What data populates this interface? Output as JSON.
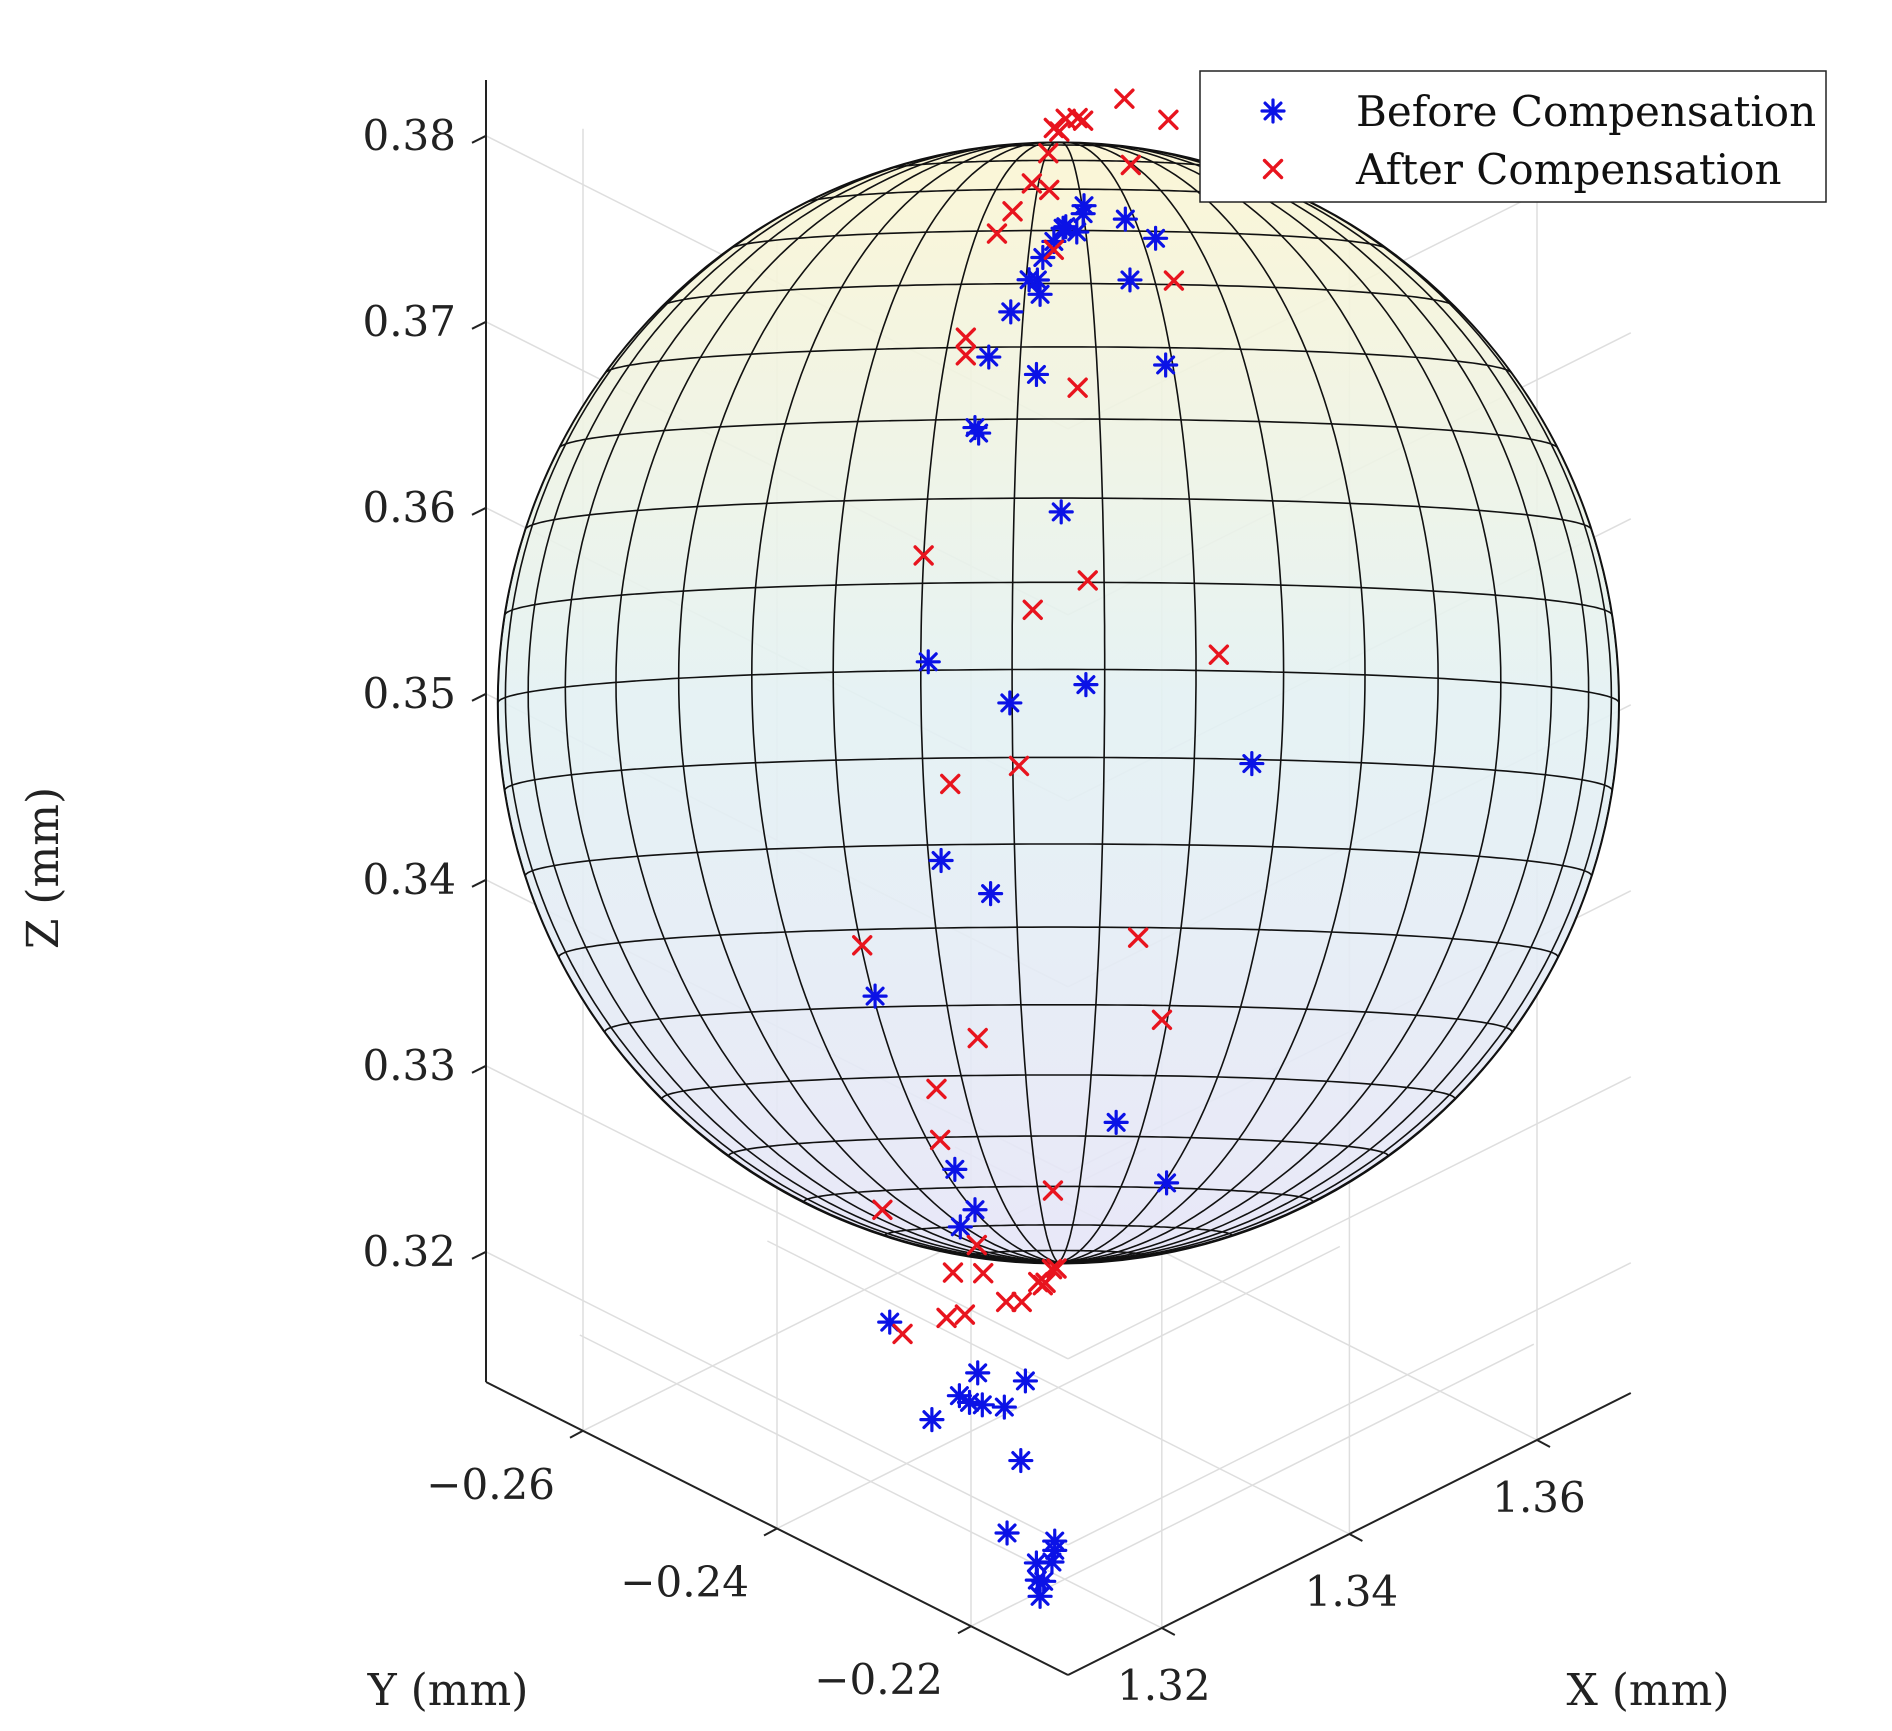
{
  "chart_data": {
    "type": "scatter",
    "projection": "3d",
    "title": "",
    "xlabel": "X (mm)",
    "ylabel": "Y (mm)",
    "zlabel": "Z (mm)",
    "xlim": [
      1.31,
      1.37
    ],
    "ylim": [
      -0.27,
      -0.21
    ],
    "zlim": [
      0.313,
      0.383
    ],
    "x_ticks": [
      1.32,
      1.34,
      1.36
    ],
    "x_tick_labels": [
      "1.32",
      "1.34",
      "1.36"
    ],
    "y_ticks": [
      -0.22,
      -0.24,
      -0.26
    ],
    "y_tick_labels": [
      "−0.22",
      "−0.24",
      "−0.26"
    ],
    "z_ticks": [
      0.32,
      0.33,
      0.34,
      0.35,
      0.36,
      0.37,
      0.38
    ],
    "z_tick_labels": [
      "0.32",
      "0.33",
      "0.34",
      "0.35",
      "0.36",
      "0.37",
      "0.38"
    ],
    "grid": true,
    "legend_position": "top-right",
    "sphere": {
      "center_x": 1.34,
      "center_y": -0.24,
      "center_z": 0.3498,
      "radius": 0.0306,
      "wireframe": "black",
      "fill": "translucent yellow-to-blue gradient"
    },
    "series": [
      {
        "name": "Before Compensation",
        "marker": "asterisk",
        "color": "#0b12e6",
        "points": [
          [
            1.339,
            -0.2395,
            0.375
          ],
          [
            1.3405,
            -0.24,
            0.3752
          ],
          [
            1.3412,
            -0.2404,
            0.375
          ],
          [
            1.3371,
            -0.2388,
            0.3748
          ],
          [
            1.336,
            -0.2383,
            0.374
          ],
          [
            1.3366,
            -0.2386,
            0.373
          ],
          [
            1.3432,
            -0.2412,
            0.374
          ],
          [
            1.3445,
            -0.2418,
            0.3745
          ],
          [
            1.3448,
            -0.242,
            0.3748
          ],
          [
            1.3346,
            -0.2378,
            0.3745
          ],
          [
            1.3312,
            -0.2364,
            0.374
          ],
          [
            1.3272,
            -0.2348,
            0.373
          ],
          [
            1.3249,
            -0.234,
            0.37
          ],
          [
            1.3255,
            -0.2342,
            0.3695
          ],
          [
            1.3358,
            -0.2382,
            0.369
          ],
          [
            1.3521,
            -0.2448,
            0.3715
          ],
          [
            1.3528,
            -0.245,
            0.368
          ],
          [
            1.3576,
            -0.247,
            0.3685
          ],
          [
            1.3595,
            -0.2478,
            0.361
          ],
          [
            1.3163,
            -0.2305,
            0.3605
          ],
          [
            1.3403,
            -0.24,
            0.36
          ],
          [
            1.3311,
            -0.2364,
            0.353
          ],
          [
            1.3186,
            -0.2314,
            0.349
          ],
          [
            1.345,
            -0.242,
            0.349
          ],
          [
            1.3066,
            -0.2266,
            0.346
          ],
          [
            1.3276,
            -0.235,
            0.344
          ],
          [
            1.3751,
            -0.254,
            0.334
          ],
          [
            1.3211,
            -0.2324,
            0.3315
          ],
          [
            1.3093,
            -0.2277,
            0.3275
          ],
          [
            1.3222,
            -0.2329,
            0.328
          ],
          [
            1.3248,
            -0.2339,
            0.328
          ],
          [
            1.3505,
            -0.2442,
            0.3235
          ],
          [
            1.317,
            -0.2308,
            0.3195
          ],
          [
            1.322,
            -0.2328,
            0.319
          ],
          [
            1.3238,
            -0.2335,
            0.318
          ],
          [
            1.3254,
            -0.2342,
            0.319
          ],
          [
            1.3262,
            -0.2345,
            0.317
          ],
          [
            1.3596,
            -0.2478,
            0.317
          ],
          [
            1.3301,
            -0.236,
            0.3155
          ],
          [
            1.334,
            -0.2376,
            0.3155
          ],
          [
            1.3332,
            -0.2373,
            0.3115
          ],
          [
            1.3307,
            -0.2363,
            0.3085
          ],
          [
            1.336,
            -0.2384,
            0.305
          ],
          [
            1.3362,
            -0.2385,
            0.304
          ],
          [
            1.3366,
            -0.2386,
            0.303
          ],
          [
            1.3374,
            -0.239,
            0.3035
          ],
          [
            1.3389,
            -0.2396,
            0.304
          ],
          [
            1.3393,
            -0.2397,
            0.3045
          ],
          [
            1.3393,
            -0.2397,
            0.305
          ]
        ]
      },
      {
        "name": "After Compensation",
        "marker": "x",
        "color": "#e8141e",
        "points": [
          [
            1.3392,
            -0.2397,
            0.381
          ],
          [
            1.3401,
            -0.24,
            0.3805
          ],
          [
            1.3414,
            -0.2406,
            0.3807
          ],
          [
            1.3382,
            -0.2393,
            0.38
          ],
          [
            1.3435,
            -0.2414,
            0.38
          ],
          [
            1.3445,
            -0.2418,
            0.3795
          ],
          [
            1.3351,
            -0.238,
            0.3795
          ],
          [
            1.3317,
            -0.2367,
            0.3792
          ],
          [
            1.3289,
            -0.2356,
            0.379
          ],
          [
            1.3383,
            -0.2393,
            0.378
          ],
          [
            1.352,
            -0.2448,
            0.378
          ],
          [
            1.3231,
            -0.2332,
            0.3755
          ],
          [
            1.3232,
            -0.2333,
            0.3745
          ],
          [
            1.3391,
            -0.2396,
            0.3745
          ],
          [
            1.3532,
            -0.2453,
            0.374
          ],
          [
            1.36,
            -0.248,
            0.374
          ],
          [
            1.3155,
            -0.2302,
            0.3665
          ],
          [
            1.3435,
            -0.2414,
            0.3655
          ],
          [
            1.361,
            -0.2484,
            0.365
          ],
          [
            1.3353,
            -0.2381,
            0.3565
          ],
          [
            1.3453,
            -0.2421,
            0.3545
          ],
          [
            1.3203,
            -0.2321,
            0.3525
          ],
          [
            1.3044,
            -0.2258,
            0.3495
          ],
          [
            1.3328,
            -0.2371,
            0.349
          ],
          [
            1.3691,
            -0.2516,
            0.342
          ],
          [
            1.3178,
            -0.2311,
            0.337
          ],
          [
            1.3254,
            -0.2342,
            0.337
          ],
          [
            1.308,
            -0.2272,
            0.334
          ],
          [
            1.3185,
            -0.2314,
            0.334
          ],
          [
            1.3545,
            -0.2458,
            0.332
          ],
          [
            1.3117,
            -0.2287,
            0.326
          ],
          [
            1.3209,
            -0.2324,
            0.326
          ],
          [
            1.3251,
            -0.234,
            0.326
          ],
          [
            1.3589,
            -0.2476,
            0.326
          ],
          [
            1.3197,
            -0.2319,
            0.324
          ],
          [
            1.3264,
            -0.2346,
            0.324
          ],
          [
            1.323,
            -0.2332,
            0.323
          ],
          [
            1.3389,
            -0.2395,
            0.324
          ],
          [
            1.3305,
            -0.2362,
            0.321
          ],
          [
            1.3333,
            -0.2373,
            0.32
          ],
          [
            1.3363,
            -0.2385,
            0.32
          ],
          [
            1.3376,
            -0.239,
            0.3195
          ],
          [
            1.3388,
            -0.2395,
            0.3198
          ],
          [
            1.3397,
            -0.2399,
            0.3195
          ],
          [
            1.3372,
            -0.2389,
            0.3195
          ]
        ]
      }
    ]
  }
}
